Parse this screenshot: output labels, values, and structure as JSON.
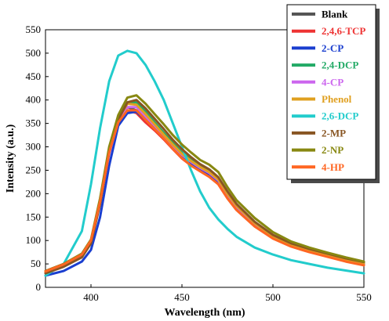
{
  "chart_data": {
    "type": "line",
    "title": "",
    "xlabel": "Wavelength (nm)",
    "ylabel": "Intensity (a.u.)",
    "xlim": [
      375,
      550
    ],
    "ylim": [
      0,
      550
    ],
    "xticks": [
      400,
      450,
      500,
      550
    ],
    "yticks": [
      0,
      50,
      100,
      150,
      200,
      250,
      300,
      350,
      400,
      450,
      500,
      550
    ],
    "grid": false,
    "legend_position": "top-right",
    "x": [
      375,
      385,
      395,
      400,
      405,
      410,
      415,
      420,
      425,
      430,
      435,
      440,
      445,
      450,
      455,
      460,
      465,
      470,
      475,
      480,
      490,
      500,
      510,
      520,
      530,
      540,
      550
    ],
    "series": [
      {
        "name": "Blank",
        "color": "#555555",
        "values": [
          30,
          45,
          65,
          95,
          180,
          290,
          355,
          385,
          378,
          360,
          340,
          320,
          300,
          280,
          265,
          250,
          240,
          225,
          195,
          170,
          135,
          108,
          90,
          78,
          68,
          58,
          50
        ]
      },
      {
        "name": "2,4,6-TCP",
        "color": "#ee3333",
        "values": [
          35,
          50,
          70,
          100,
          185,
          290,
          355,
          378,
          372,
          352,
          335,
          316,
          295,
          275,
          260,
          248,
          236,
          220,
          190,
          165,
          130,
          105,
          88,
          76,
          66,
          56,
          48
        ]
      },
      {
        "name": "2-CP",
        "color": "#1a3ecf",
        "values": [
          25,
          35,
          55,
          80,
          150,
          260,
          345,
          372,
          375,
          358,
          340,
          320,
          300,
          280,
          265,
          252,
          240,
          225,
          195,
          170,
          135,
          108,
          90,
          78,
          68,
          58,
          50
        ]
      },
      {
        "name": "2,4-DCP",
        "color": "#22aa66",
        "values": [
          32,
          48,
          70,
          100,
          185,
          290,
          360,
          395,
          395,
          375,
          352,
          330,
          308,
          288,
          272,
          260,
          250,
          230,
          200,
          175,
          138,
          110,
          92,
          80,
          70,
          60,
          52
        ]
      },
      {
        "name": "4-CP",
        "color": "#cc66ee",
        "values": [
          30,
          45,
          66,
          96,
          180,
          285,
          355,
          385,
          385,
          365,
          345,
          325,
          303,
          283,
          268,
          255,
          244,
          228,
          198,
          172,
          136,
          108,
          90,
          78,
          68,
          58,
          50
        ]
      },
      {
        "name": "Phenol",
        "color": "#e0a020",
        "values": [
          33,
          48,
          70,
          100,
          185,
          292,
          360,
          392,
          390,
          370,
          348,
          326,
          305,
          285,
          270,
          257,
          246,
          230,
          200,
          174,
          137,
          109,
          91,
          79,
          69,
          59,
          51
        ]
      },
      {
        "name": "2,6-DCP",
        "color": "#22cccc",
        "values": [
          25,
          50,
          120,
          220,
          340,
          440,
          495,
          505,
          500,
          475,
          440,
          400,
          350,
          300,
          250,
          205,
          170,
          145,
          125,
          108,
          85,
          70,
          58,
          50,
          42,
          36,
          30
        ]
      },
      {
        "name": "2-MP",
        "color": "#885522",
        "values": [
          30,
          44,
          64,
          94,
          178,
          288,
          358,
          395,
          400,
          382,
          360,
          338,
          315,
          295,
          278,
          263,
          252,
          235,
          205,
          178,
          140,
          112,
          94,
          82,
          72,
          62,
          54
        ]
      },
      {
        "name": "2-NP",
        "color": "#888811",
        "values": [
          35,
          50,
          72,
          102,
          190,
          300,
          368,
          405,
          410,
          392,
          370,
          348,
          325,
          305,
          288,
          272,
          262,
          246,
          214,
          186,
          148,
          118,
          98,
          85,
          74,
          64,
          55
        ]
      },
      {
        "name": "4-HP",
        "color": "#ff6622",
        "values": [
          34,
          49,
          70,
          100,
          183,
          288,
          352,
          378,
          378,
          358,
          338,
          318,
          296,
          276,
          260,
          248,
          236,
          220,
          190,
          165,
          130,
          104,
          87,
          75,
          65,
          55,
          47
        ]
      }
    ]
  }
}
